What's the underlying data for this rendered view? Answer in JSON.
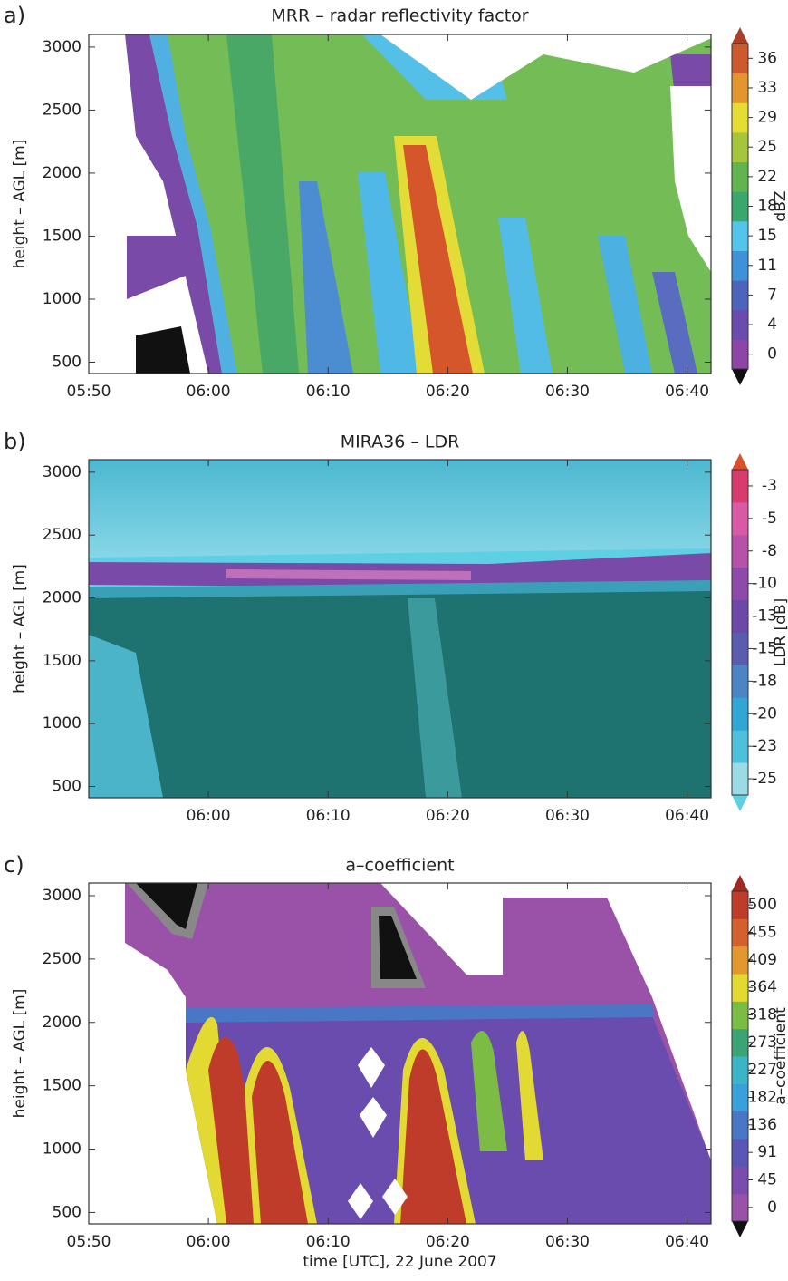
{
  "chart_data": [
    {
      "type": "contour",
      "panel_label": "a)",
      "title": "MRR – radar reflectivity factor",
      "ylabel": "height – AGL [m]",
      "xlim": [
        "05:50",
        "06:42"
      ],
      "xticks": [
        "05:50",
        "06:00",
        "06:10",
        "06:20",
        "06:30",
        "06:40"
      ],
      "ylim": [
        410,
        3100
      ],
      "yticks": [
        500,
        1000,
        1500,
        2000,
        2500,
        3000
      ],
      "colorbar_label": "dBZ",
      "colorbar_ticks": [
        0,
        4,
        7,
        11,
        15,
        18,
        22,
        25,
        29,
        33,
        36
      ],
      "colorbar_colors": [
        "#111111",
        "#8e46a6",
        "#6a4cae",
        "#4c64bc",
        "#3f92d8",
        "#54c4ea",
        "#3aa86c",
        "#62b450",
        "#a6c43c",
        "#e4de34",
        "#e2962e",
        "#cc5a2c",
        "#a8402a"
      ]
    },
    {
      "type": "contour",
      "panel_label": "b)",
      "title": "MIRA36 – LDR",
      "ylabel": "height – AGL [m]",
      "xlim": [
        "05:50",
        "06:42"
      ],
      "xticks": [
        "06:00",
        "06:10",
        "06:20",
        "06:30",
        "06:40"
      ],
      "ylim": [
        410,
        3100
      ],
      "yticks": [
        500,
        1000,
        1500,
        2000,
        2500,
        3000
      ],
      "colorbar_label": "LDR [dB]",
      "colorbar_ticks": [
        -25,
        -23,
        -20,
        -18,
        -15,
        -13,
        -10,
        -8,
        -5,
        -3
      ],
      "colorbar_colors": [
        "#5ed0e0",
        "#9adbe6",
        "#4ec0dc",
        "#30a6d4",
        "#4c84c4",
        "#5a5cb0",
        "#6e48a8",
        "#8e4aa8",
        "#b652a8",
        "#d85aa4",
        "#d83c6e",
        "#d8502c"
      ]
    },
    {
      "type": "contour",
      "panel_label": "c)",
      "title": "a–coefficient",
      "ylabel": "height – AGL [m]",
      "xlabel": "time [UTC], 22 June 2007",
      "xlim": [
        "05:50",
        "06:42"
      ],
      "xticks": [
        "05:50",
        "06:00",
        "06:10",
        "06:20",
        "06:30",
        "06:40"
      ],
      "ylim": [
        410,
        3100
      ],
      "yticks": [
        500,
        1000,
        1500,
        2000,
        2500,
        3000
      ],
      "colorbar_label": "a–coefficient",
      "colorbar_ticks": [
        0,
        45,
        91,
        136,
        182,
        227,
        273,
        318,
        364,
        409,
        455,
        500
      ],
      "colorbar_colors": [
        "#111111",
        "#9a52a8",
        "#7a4cae",
        "#5a56b6",
        "#4a76c6",
        "#3aa0dc",
        "#3cb4c8",
        "#3ca474",
        "#7cbc44",
        "#e2da32",
        "#e2982e",
        "#d4602e",
        "#c03c2a",
        "#a02a22"
      ]
    }
  ]
}
